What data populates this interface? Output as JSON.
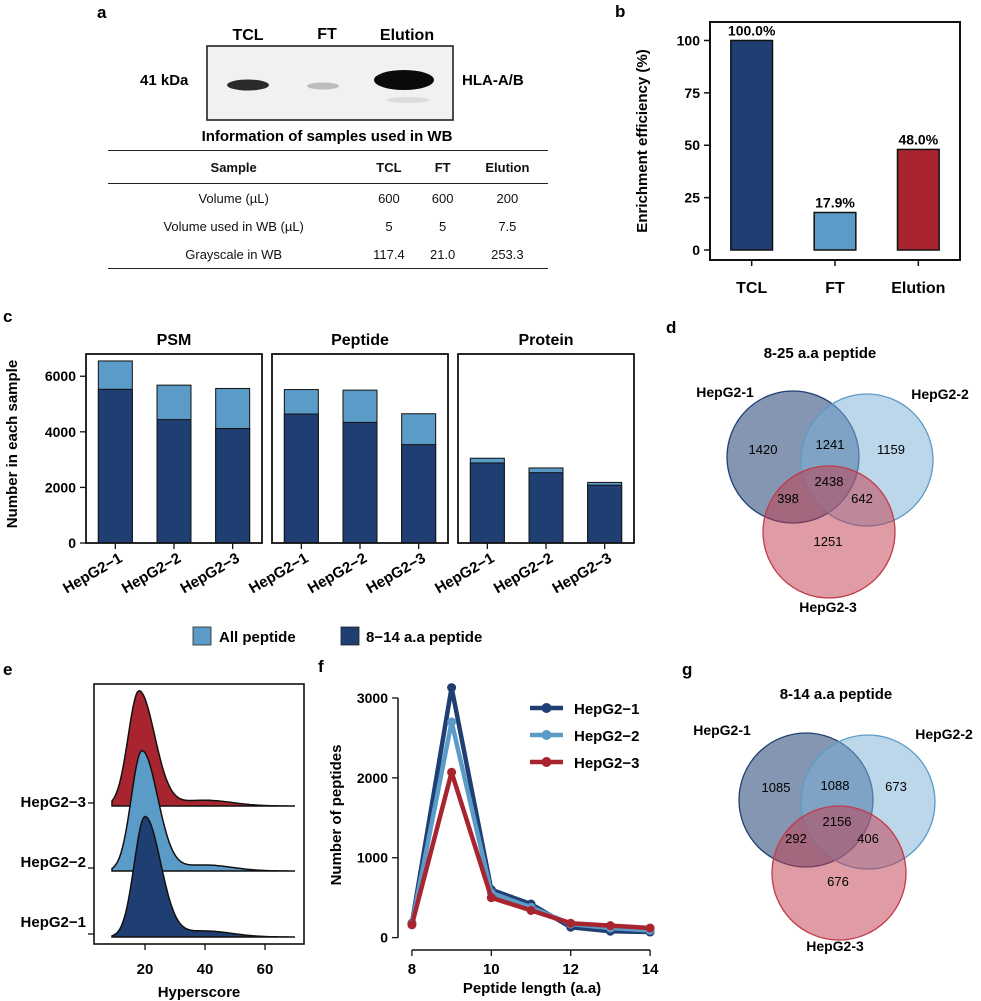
{
  "panel_letters": {
    "a": "a",
    "b": "b",
    "c": "c",
    "d": "d",
    "e": "e",
    "f": "f",
    "g": "g"
  },
  "wb": {
    "lanes": [
      "TCL",
      "FT",
      "Elution"
    ],
    "mw": "41 kDa",
    "protein": "HLA-A/B",
    "table_title": "Information of samples used in WB",
    "table_headers": [
      "Sample",
      "TCL",
      "FT",
      "Elution"
    ],
    "table_rows": [
      [
        "Volume (µL)",
        "600",
        "600",
        "200"
      ],
      [
        "Volume used in WB (µL)",
        "5",
        "5",
        "7.5"
      ],
      [
        "Grayscale in WB",
        "117.4",
        "21.0",
        "253.3"
      ]
    ]
  },
  "colors": {
    "dark_blue": "#1f3f73",
    "light_blue": "#5b9bc8",
    "red": "#a8242e"
  },
  "chart_data": [
    {
      "id": "b",
      "type": "bar",
      "categories": [
        "TCL",
        "FT",
        "Elution"
      ],
      "values": [
        100.0,
        17.9,
        48.0
      ],
      "labels": [
        "100.0%",
        "17.9%",
        "48.0%"
      ],
      "colors": [
        "#1f3f73",
        "#5b9bc8",
        "#a8242e"
      ],
      "ylabel": "Enrichment efficiency (%)",
      "yticks": [
        0,
        25,
        50,
        75,
        100
      ],
      "ylim": [
        0,
        105
      ]
    },
    {
      "id": "c",
      "type": "bar",
      "facets": [
        "PSM",
        "Peptide",
        "Protein"
      ],
      "categories": [
        "HepG2−1",
        "HepG2−2",
        "HepG2−3"
      ],
      "ylabel": "Number in each sample",
      "yticks": [
        0,
        2000,
        4000,
        6000
      ],
      "ylim": [
        0,
        6800
      ],
      "legend": [
        "All peptide",
        "8−14 a.a peptide"
      ],
      "series": [
        {
          "name": "All peptide",
          "values": [
            [
              6550,
              5680,
              5560
            ],
            [
              5520,
              5500,
              4650
            ],
            [
              3050,
              2700,
              2180
            ]
          ]
        },
        {
          "name": "8−14 a.a peptide",
          "values": [
            [
              5530,
              4440,
              4120
            ],
            [
              4640,
              4340,
              3540
            ],
            [
              2880,
              2530,
              2080
            ]
          ]
        }
      ]
    },
    {
      "id": "d",
      "type": "venn",
      "title": "8-25 a.a peptide",
      "sets": [
        "HepG2-1",
        "HepG2-2",
        "HepG2-3"
      ],
      "regions": {
        "only1": 1420,
        "only2": 1159,
        "only3": 1251,
        "s12": 1241,
        "s13": 398,
        "s23": 642,
        "all": 2438
      }
    },
    {
      "id": "e",
      "type": "area",
      "xlabel": "Hyperscore",
      "xticks": [
        20,
        40,
        60
      ],
      "xlim": [
        3,
        73
      ],
      "series": [
        {
          "name": "HepG2−1",
          "peak": 20
        },
        {
          "name": "HepG2−2",
          "peak": 19
        },
        {
          "name": "HepG2−3",
          "peak": 18
        }
      ]
    },
    {
      "id": "f",
      "type": "line",
      "x": [
        8,
        9,
        10,
        11,
        12,
        13,
        14
      ],
      "xlabel": "Peptide length (a.a)",
      "ylabel": "Number of peptides",
      "xticks": [
        8,
        10,
        12,
        14
      ],
      "yticks": [
        0,
        1000,
        2000,
        3000
      ],
      "xlim": [
        7.7,
        14.3
      ],
      "ylim": [
        -80,
        3300
      ],
      "legend_position": "top-right",
      "series": [
        {
          "name": "HepG2−1",
          "values": [
            180,
            3130,
            600,
            420,
            130,
            80,
            70
          ]
        },
        {
          "name": "HepG2−2",
          "values": [
            170,
            2700,
            560,
            380,
            170,
            120,
            90
          ]
        },
        {
          "name": "HepG2−3",
          "values": [
            160,
            2070,
            500,
            340,
            180,
            150,
            120
          ]
        }
      ]
    },
    {
      "id": "g",
      "type": "venn",
      "title": "8-14 a.a peptide",
      "sets": [
        "HepG2-1",
        "HepG2-2",
        "HepG2-3"
      ],
      "regions": {
        "only1": 1085,
        "only2": 673,
        "only3": 676,
        "s12": 1088,
        "s13": 292,
        "s23": 406,
        "all": 2156
      }
    }
  ]
}
